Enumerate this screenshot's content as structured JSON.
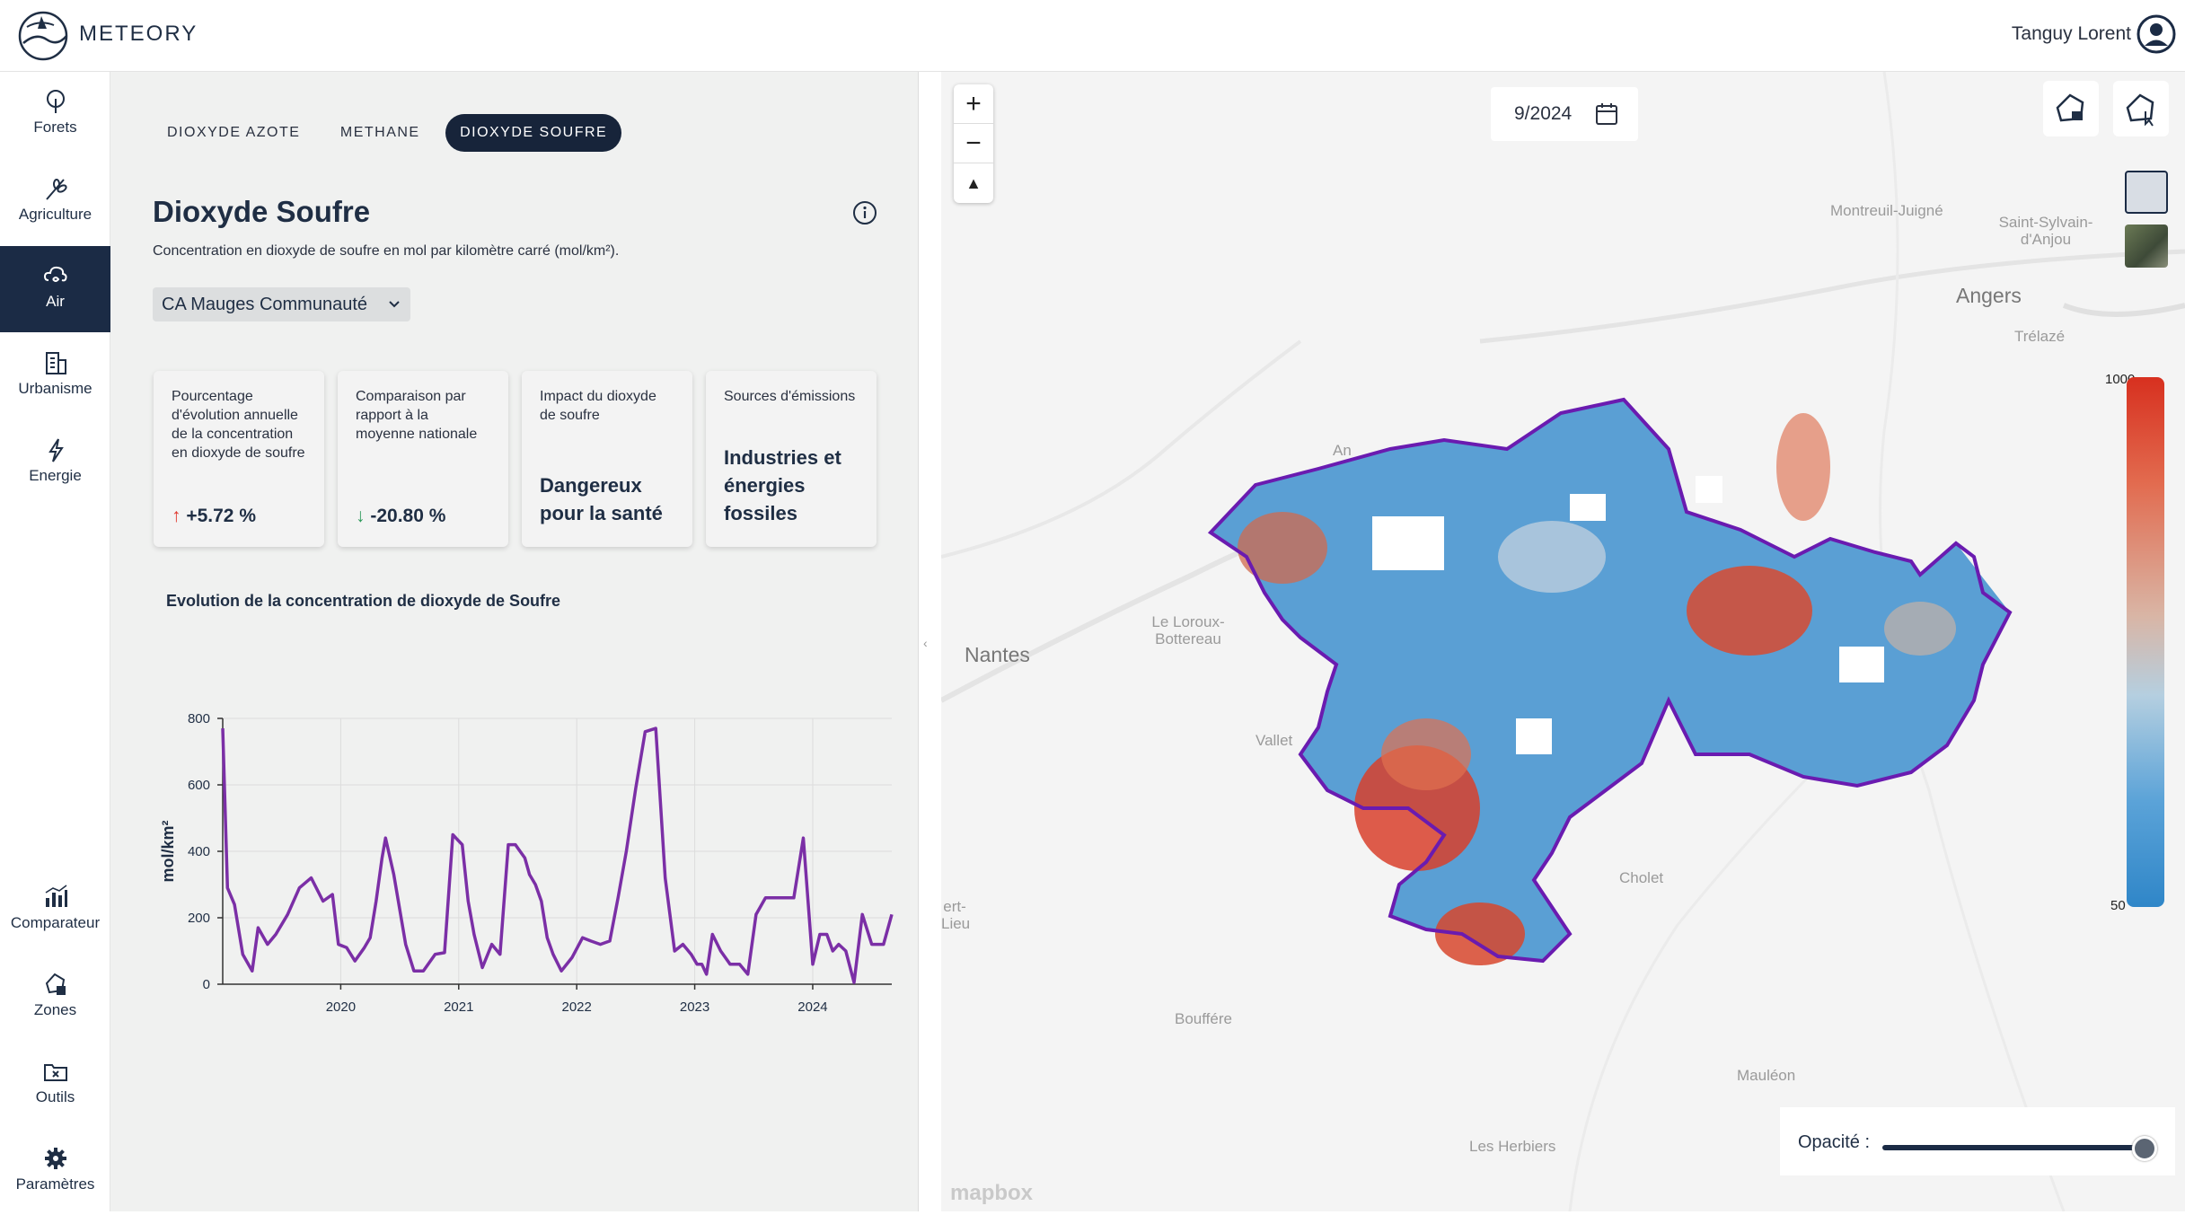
{
  "header": {
    "brand": "METEORY",
    "user_name": "Tanguy  Lorent"
  },
  "sidebar": {
    "items": [
      {
        "label": "Forets",
        "icon": "tree-icon"
      },
      {
        "label": "Agriculture",
        "icon": "wheat-icon"
      },
      {
        "label": "Air",
        "icon": "air-cloud-icon",
        "active": true
      },
      {
        "label": "Urbanisme",
        "icon": "building-icon"
      },
      {
        "label": "Energie",
        "icon": "lightning-icon"
      }
    ],
    "bottom_items": [
      {
        "label": "Comparateur",
        "icon": "bar-chart-icon"
      },
      {
        "label": "Zones",
        "icon": "zone-icon"
      },
      {
        "label": "Outils",
        "icon": "tools-folder-icon"
      },
      {
        "label": "Paramètres",
        "icon": "gear-icon"
      }
    ]
  },
  "tabs": [
    "DIOXYDE AZOTE",
    "METHANE",
    "DIOXYDE SOUFRE"
  ],
  "active_tab": "DIOXYDE SOUFRE",
  "main": {
    "title": "Dioxyde Soufre",
    "subtitle": "Concentration en dioxyde de soufre en mol par kilomètre carré (mol/km²).",
    "zone_select": "CA Mauges Communauté"
  },
  "cards": [
    {
      "label": "Pourcentage d'évolution annuelle de la concentration en dioxyde de soufre",
      "arrow": "↑",
      "value": "+5.72 %"
    },
    {
      "label": "Comparaison par rapport à la moyenne nationale",
      "arrow": "↓",
      "value": "-20.80 %"
    },
    {
      "label": "Impact du dioxyde de soufre",
      "value": "Dangereux pour la santé"
    },
    {
      "label": "Sources d'émissions",
      "value": "Industries et énergies fossiles"
    }
  ],
  "chart_data": {
    "type": "line",
    "title": "Evolution de la concentration de dioxyde de Soufre",
    "ylabel": "mol/km²",
    "ylim": [
      0,
      800
    ],
    "yticks": [
      0,
      200,
      400,
      600,
      800
    ],
    "xticks": [
      "2020",
      "2021",
      "2022",
      "2023",
      "2024"
    ],
    "xlim": [
      2019.0,
      2024.67
    ],
    "grid": true,
    "color": "#7b2fa6",
    "series": [
      {
        "x": [
          2019.0,
          2019.04,
          2019.1,
          2019.17,
          2019.25,
          2019.3,
          2019.38,
          2019.45,
          2019.55,
          2019.65,
          2019.75,
          2019.85,
          2019.93,
          2019.98,
          2020.05,
          2020.12,
          2020.2,
          2020.25,
          2020.3,
          2020.35,
          2020.38,
          2020.45,
          2020.55,
          2020.62,
          2020.7,
          2020.8,
          2020.88,
          2020.95,
          2021.03,
          2021.08,
          2021.13,
          2021.2,
          2021.28,
          2021.35,
          2021.42,
          2021.48,
          2021.52,
          2021.56,
          2021.6,
          2021.65,
          2021.7,
          2021.75,
          2021.8,
          2021.87,
          2021.96,
          2022.05,
          2022.12,
          2022.2,
          2022.28,
          2022.35,
          2022.42,
          2022.5,
          2022.58,
          2022.67,
          2022.75,
          2022.83,
          2022.9,
          2022.97,
          2023.02,
          2023.06,
          2023.1,
          2023.15,
          2023.22,
          2023.3,
          2023.38,
          2023.45,
          2023.52,
          2023.6,
          2023.67,
          2023.72,
          2023.78,
          2023.84,
          2023.92,
          2024.0,
          2024.06,
          2024.12,
          2024.17,
          2024.22,
          2024.28,
          2024.35,
          2024.42,
          2024.5,
          2024.56,
          2024.6,
          2024.67
        ],
        "y": [
          770,
          290,
          240,
          90,
          40,
          170,
          120,
          150,
          210,
          290,
          320,
          250,
          270,
          120,
          110,
          70,
          110,
          140,
          250,
          380,
          440,
          330,
          120,
          40,
          40,
          90,
          95,
          450,
          420,
          250,
          150,
          50,
          120,
          90,
          420,
          420,
          400,
          380,
          330,
          300,
          250,
          140,
          90,
          40,
          80,
          140,
          130,
          120,
          130,
          260,
          400,
          590,
          760,
          770,
          320,
          100,
          120,
          90,
          60,
          60,
          30,
          150,
          100,
          60,
          60,
          30,
          210,
          260,
          260,
          260,
          260,
          260,
          440,
          60,
          150,
          150,
          100,
          120,
          100,
          5,
          210,
          120,
          120,
          120,
          210
        ]
      }
    ]
  },
  "map": {
    "date": "9/2024",
    "zoom_in": "+",
    "zoom_out": "−",
    "compass": "▲",
    "legend_max": "1000",
    "legend_min": "50",
    "opacity_label": "Opacité :",
    "opacity_value": 0.96,
    "attribution": "mapbox",
    "places": [
      "Montreuil-Juigné",
      "Saint-Sylvain-d'Anjou",
      "Angers",
      "Trélazé",
      "Nantes",
      "Le Loroux-Bottereau",
      "Vallet",
      "Cholet",
      "Bouffére",
      "Mauléon",
      "Les Herbiers",
      "ert-Lieu",
      "An"
    ]
  }
}
